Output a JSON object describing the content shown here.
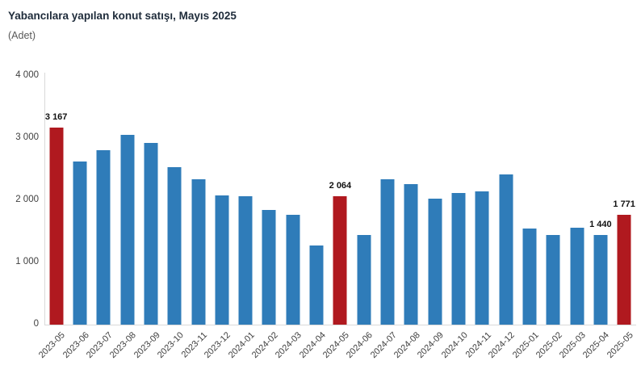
{
  "header": {
    "title": "Yabancılara yapılan konut satışı, Mayıs 2025",
    "subtitle": "(Adet)"
  },
  "chart_data": {
    "type": "bar",
    "title": "Yabancılara yapılan konut satışı, Mayıs 2025",
    "ylabel": "(Adet)",
    "xlabel": "",
    "categories": [
      "2023-05",
      "2023-06",
      "2023-07",
      "2023-08",
      "2023-09",
      "2023-10",
      "2023-11",
      "2023-12",
      "2024-01",
      "2024-02",
      "2024-03",
      "2024-04",
      "2024-05",
      "2024-06",
      "2024-07",
      "2024-08",
      "2024-09",
      "2024-10",
      "2024-11",
      "2024-12",
      "2025-01",
      "2025-02",
      "2025-03",
      "2025-04",
      "2025-05"
    ],
    "values": [
      3167,
      2625,
      2801,
      3058,
      2925,
      2535,
      2341,
      2076,
      2070,
      1846,
      1772,
      1267,
      2064,
      1437,
      2343,
      2255,
      2022,
      2124,
      2147,
      2416,
      1541,
      1442,
      1564,
      1440,
      1771
    ],
    "highlighted_categories": [
      "2023-05",
      "2024-05",
      "2025-05"
    ],
    "data_labels": {
      "2023-05": "3 167",
      "2024-05": "2 064",
      "2025-04": "1 440",
      "2025-05": "1 771"
    },
    "ylim": [
      0,
      4000
    ],
    "ytick_values": [
      0,
      1000,
      2000,
      3000,
      4000
    ],
    "ytick_labels": [
      "0",
      "1 000",
      "2 000",
      "3 000",
      "4 000"
    ],
    "grid": false,
    "legend_position": "none",
    "colors": {
      "bar": "#2f7cb9",
      "highlight": "#b0191f",
      "axis_line": "#d9d9d9",
      "tick_text": "#404040",
      "title_text": "#1e2b3a",
      "subtitle_text": "#595959",
      "value_label_text": "#111111"
    }
  }
}
